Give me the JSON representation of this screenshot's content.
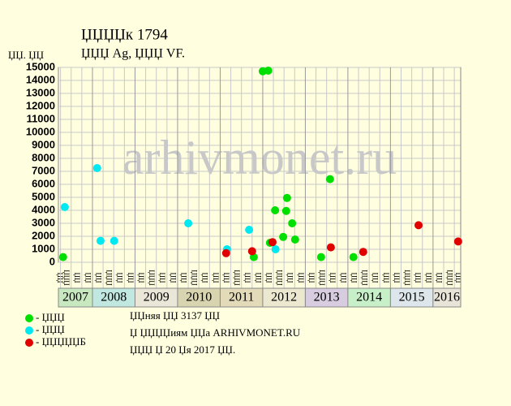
{
  "chart_data": {
    "type": "scatter",
    "title": "ЏЏЏЏк 1794",
    "subtitle": "ЏЏЏ Ag, ЏЏЏ VF.",
    "y_label": "ЏЏ. ЏЏ",
    "watermark": "arhivmonet.ru",
    "xlim": [
      2007.2,
      2016.65
    ],
    "ylim": [
      0,
      15000
    ],
    "yticks": [
      0,
      1000,
      2000,
      3000,
      4000,
      5000,
      6000,
      7000,
      8000,
      9000,
      10000,
      11000,
      12000,
      13000,
      14000,
      15000
    ],
    "grid": true,
    "years": [
      2007,
      2008,
      2009,
      2010,
      2011,
      2012,
      2013,
      2014,
      2015,
      2016
    ],
    "year_colors": [
      "#c8e8c0",
      "#c0e8e0",
      "#ebe7d8",
      "#d8d4b0",
      "#e2dab8",
      "#ece8d0",
      "#d8cce0",
      "#c8f0c8",
      "#dde6ea",
      "#e8e4d8"
    ],
    "column_labels": [
      "ЏЏ",
      "ЏЏЏ",
      "ЏЏ",
      "ЏЏ"
    ],
    "series": [
      {
        "name": "- ЏЏЏ",
        "color": "#00e000",
        "x": [
          2007.31,
          2011.79,
          2012.0,
          2012.13,
          2012.17,
          2012.29,
          2012.48,
          2012.55,
          2012.57,
          2012.69,
          2012.76,
          2013.37,
          2013.58,
          2014.13
        ],
        "values": [
          400,
          400,
          14700,
          14750,
          1500,
          4000,
          1950,
          3950,
          4950,
          3000,
          1750,
          400,
          6400,
          400
        ]
      },
      {
        "name": "- ЏЏЏ",
        "color": "#00e8f0",
        "x": [
          2007.35,
          2008.11,
          2008.19,
          2008.51,
          2010.25,
          2011.16,
          2011.68,
          2012.3
        ],
        "values": [
          4250,
          7250,
          1650,
          1650,
          3000,
          1000,
          2500,
          1000
        ]
      },
      {
        "name": "- ЏЏЏЏЏБ",
        "color": "#e00000",
        "x": [
          2011.14,
          2011.75,
          2012.23,
          2013.6,
          2014.36,
          2015.66,
          2016.59
        ],
        "values": [
          700,
          850,
          1550,
          1150,
          800,
          2850,
          1600
        ]
      }
    ],
    "notes": [
      "ЏЏняя ЏЏ 3137 ЏЏ",
      "Џ ЏЏЏЏиям ЏЏа ARHIVMONET.RU",
      "ЏЏЏ Џ 20 Џя 2017 ЏЏ."
    ]
  }
}
